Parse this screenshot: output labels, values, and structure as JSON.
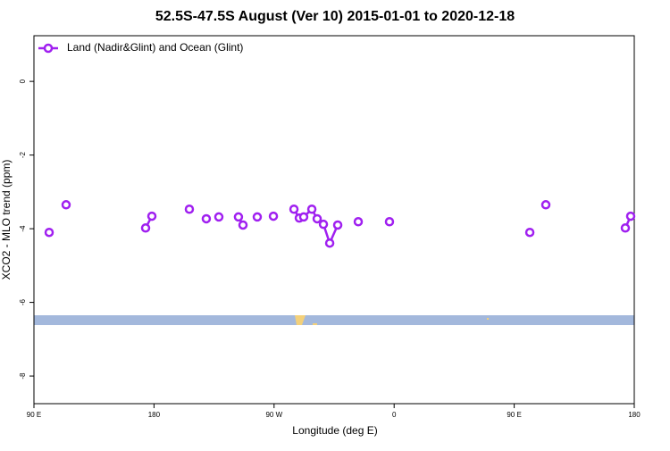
{
  "chart_data": {
    "type": "line",
    "title": "52.5S-47.5S August (Ver 10)   2015-01-01 to 2020-12-18",
    "xlabel": "Longitude (deg E)",
    "ylabel": "XCO2 - MLO trend (ppm)",
    "x": [
      101.4,
      null,
      114.1,
      null,
      173.7,
      178.4,
      null,
      206.5,
      null,
      219.2,
      null,
      228.6,
      null,
      243.3,
      246.7,
      null,
      257.4,
      null,
      269.5,
      null,
      284.9,
      288.9,
      292.2,
      298.3,
      302.3,
      307.0,
      311.7,
      317.7,
      null,
      333.1,
      null,
      356.5,
      null,
      461.7,
      null,
      473.7,
      null,
      533.3,
      537.3
    ],
    "series": [
      {
        "name": "Land (Nadir&Glint) and Ocean (Glint)",
        "color": "#a020f0",
        "values": [
          -4.1,
          null,
          -3.35,
          null,
          -3.98,
          -3.66,
          null,
          -3.47,
          null,
          -3.73,
          null,
          -3.68,
          null,
          -3.68,
          -3.9,
          null,
          -3.68,
          null,
          -3.66,
          null,
          -3.47,
          -3.71,
          -3.68,
          -3.47,
          -3.73,
          -3.88,
          -4.39,
          -3.9,
          null,
          -3.81,
          null,
          -3.81,
          null,
          -4.1,
          null,
          -3.35,
          null,
          -3.98,
          -3.66
        ]
      }
    ],
    "xlim": [
      90,
      540
    ],
    "xticks": [
      {
        "value": 90,
        "label": "90 E"
      },
      180,
      {
        "value": 270,
        "label": "90 W"
      },
      {
        "value": 360,
        "label": "0"
      },
      {
        "value": 450,
        "label": "90 E"
      },
      {
        "value": 540,
        "label": "180"
      }
    ],
    "ylim": [
      -8.75,
      1.24
    ],
    "yticks": [
      0,
      -2,
      -4,
      -6,
      -8
    ],
    "legend": "top-left"
  }
}
